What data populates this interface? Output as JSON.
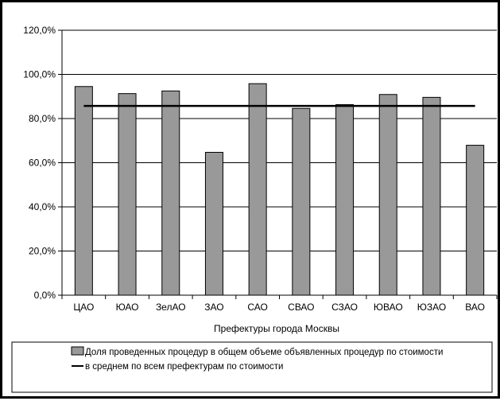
{
  "chart_data": {
    "type": "bar",
    "categories": [
      "ЦАО",
      "ЮАО",
      "ЗелАО",
      "ЗАО",
      "САО",
      "СВАО",
      "СЗАО",
      "ЮВАО",
      "ЮЗАО",
      "ВАО"
    ],
    "series": [
      {
        "name": "Доля проведенных процедур в общем объеме объявленных процедур по стоимости",
        "type": "bar",
        "values": [
          94.5,
          91.3,
          92.5,
          64.7,
          95.8,
          84.6,
          86.3,
          90.9,
          89.6,
          67.9
        ]
      },
      {
        "name": "в среднем по всем префектурам по стоимости",
        "type": "line",
        "value": 85.7
      }
    ],
    "xlabel": "Префектуры города Москвы",
    "ylabel": "",
    "ylim": [
      0,
      120
    ],
    "yticks": [
      "0,0%",
      "20,0%",
      "40,0%",
      "60,0%",
      "80,0%",
      "100,0%",
      "120,0%"
    ],
    "ytick_values": [
      0,
      20,
      40,
      60,
      80,
      100,
      120
    ],
    "grid": "horizontal",
    "legend_position": "bottom",
    "colors": {
      "bar": "#999999",
      "bar_border": "#000000",
      "line": "#000000",
      "grid": "#000000"
    }
  }
}
